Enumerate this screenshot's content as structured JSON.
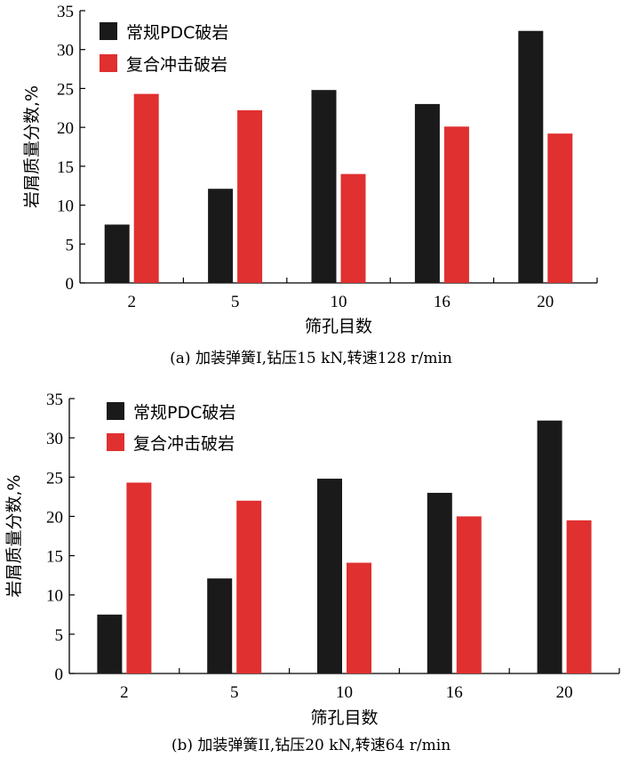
{
  "chart_data": [
    {
      "type": "bar",
      "caption": "(a) 加装弹簧I,钻压15 kN,转速128 r/min",
      "xlabel": "筛孔目数",
      "ylabel": "岩屑质量分数,%",
      "categories": [
        "2",
        "5",
        "10",
        "16",
        "20"
      ],
      "ylim": [
        0,
        35
      ],
      "yticks": [
        0,
        5,
        10,
        15,
        20,
        25,
        30,
        35
      ],
      "legend_position": "top-left",
      "series": [
        {
          "name": "常规PDC破岩",
          "color": "#1a1a1a",
          "values": [
            7.5,
            12.1,
            24.8,
            23.0,
            32.4
          ]
        },
        {
          "name": "复合冲击破岩",
          "color": "#e03030",
          "values": [
            24.3,
            22.2,
            14.0,
            20.1,
            19.2
          ]
        }
      ]
    },
    {
      "type": "bar",
      "caption": "(b) 加装弹簧II,钻压20 kN,转速64 r/min",
      "xlabel": "筛孔目数",
      "ylabel": "岩屑质量分数,%",
      "categories": [
        "2",
        "5",
        "10",
        "16",
        "20"
      ],
      "ylim": [
        0,
        35
      ],
      "yticks": [
        0,
        5,
        10,
        15,
        20,
        25,
        30,
        35
      ],
      "legend_position": "top-left",
      "series": [
        {
          "name": "常规PDC破岩",
          "color": "#1a1a1a",
          "values": [
            7.5,
            12.1,
            24.8,
            23.0,
            32.2
          ]
        },
        {
          "name": "复合冲击破岩",
          "color": "#e03030",
          "values": [
            24.3,
            22.0,
            14.1,
            20.0,
            19.5
          ]
        }
      ]
    }
  ]
}
